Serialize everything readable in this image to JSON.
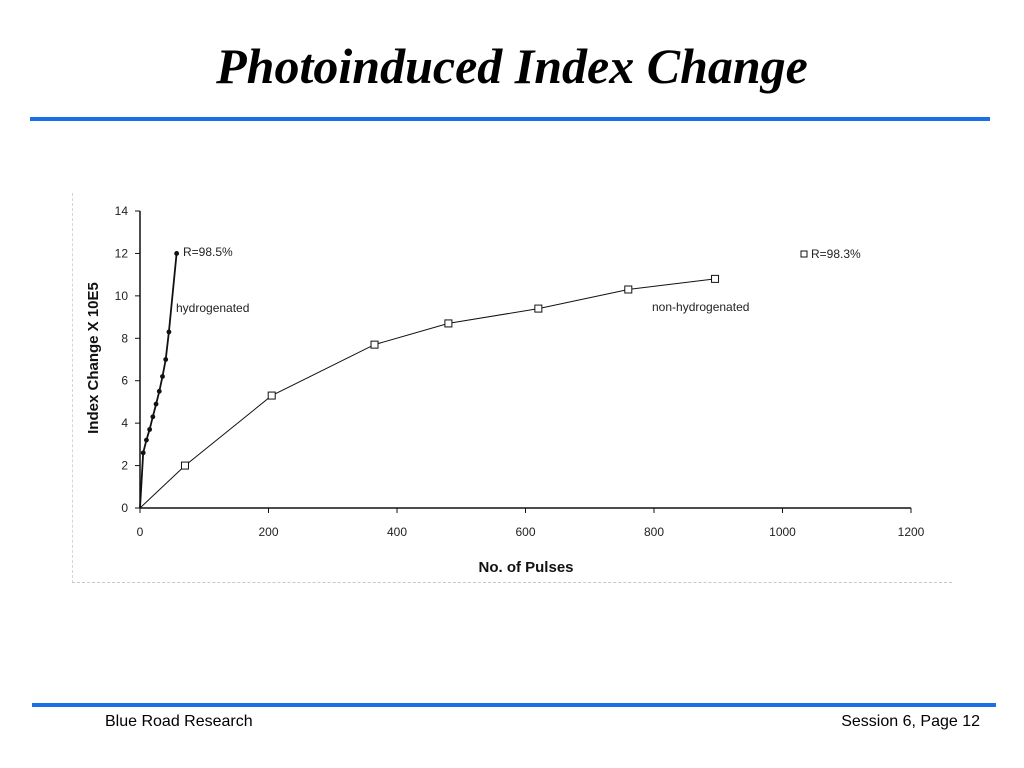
{
  "slide": {
    "title": "Photoinduced Index Change",
    "footer_left": "Blue Road Research",
    "footer_right": "Session 6, Page 12",
    "accent_color": "#1a6ee6"
  },
  "chart_data": {
    "type": "line",
    "title": "",
    "xlabel": "No. of Pulses",
    "ylabel": "Index Change X 10E5",
    "xlim": [
      0,
      1200
    ],
    "ylim": [
      0,
      14
    ],
    "xticks": [
      0,
      200,
      400,
      600,
      800,
      1000,
      1200
    ],
    "yticks": [
      0,
      2,
      4,
      6,
      8,
      10,
      12,
      14
    ],
    "xtick_labels": [
      "0",
      "200",
      "400",
      "600",
      "800",
      "1000",
      "1200"
    ],
    "ytick_labels": [
      "0",
      "2",
      "4",
      "6",
      "8",
      "10",
      "12",
      "14"
    ],
    "grid": false,
    "series": [
      {
        "label": "hydrogenated",
        "marker": "filled-circle",
        "color": "#111111",
        "x": [
          0,
          5,
          10,
          15,
          20,
          25,
          30,
          35,
          40,
          45,
          57
        ],
        "y": [
          0,
          2.6,
          3.2,
          3.7,
          4.3,
          4.9,
          5.5,
          6.2,
          7.0,
          8.3,
          12.0
        ]
      },
      {
        "label": "non-hydrogenated",
        "marker": "open-square",
        "color": "#111111",
        "x": [
          0,
          70,
          205,
          365,
          480,
          620,
          760,
          895
        ],
        "y": [
          0,
          2.0,
          5.3,
          7.7,
          8.7,
          9.4,
          10.3,
          10.8
        ]
      }
    ],
    "annotations": {
      "r_hydrogenated": "R=98.5%",
      "r_nonhydrogenated": "R=98.3%"
    }
  }
}
